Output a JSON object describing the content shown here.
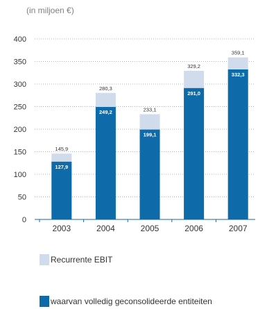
{
  "unit_label": "(in miljoen €)",
  "colors": {
    "total": "#d0dcec",
    "consolidated": "#0e6aa8",
    "grid": "#b5b5b5",
    "axis": "#0e6aa8"
  },
  "chart_data": {
    "type": "bar",
    "stacked": "overlay",
    "categories": [
      "2003",
      "2004",
      "2005",
      "2006",
      "2007"
    ],
    "series": [
      {
        "name": "Recurrente EBIT",
        "values": [
          145.9,
          280.3,
          233.1,
          329.2,
          359.1
        ],
        "labels": [
          "145,9",
          "280,3",
          "233,1",
          "329,2",
          "359,1"
        ]
      },
      {
        "name": "waarvan volledig geconsolideerde entiteiten",
        "values": [
          127.9,
          249.2,
          199.1,
          291.0,
          332.3
        ],
        "labels": [
          "127,9",
          "249,2",
          "199,1",
          "291,0",
          "332,3"
        ]
      }
    ],
    "ylim": [
      0,
      400
    ],
    "yticks": [
      0,
      50,
      100,
      150,
      200,
      250,
      300,
      350,
      400
    ],
    "grid": true,
    "legend_position": "bottom"
  }
}
